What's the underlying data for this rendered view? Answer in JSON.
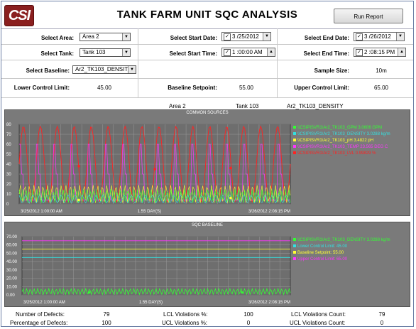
{
  "app": {
    "logo": "CSI",
    "title": "TANK FARM UNIT SQC ANALYSIS",
    "run_report_label": "Run Report"
  },
  "form": {
    "area_label": "Select Area:",
    "area_value": "Area 2",
    "start_date_label": "Select Start Date:",
    "start_date_value": "3 /25/2012",
    "end_date_label": "Select End Date:",
    "end_date_value": "3 /26/2012",
    "tank_label": "Select Tank:",
    "tank_value": "Tank 103",
    "start_time_label": "Select Start Time:",
    "start_time_value": "1 :00:00 AM",
    "end_time_label": "Select End Time:",
    "end_time_value": "2 :08:15 PM",
    "baseline_label": "Select Baseline:",
    "baseline_value": "Ar2_TK103_DENSIT",
    "sample_size_label": "Sample Size:",
    "sample_size_value": "10m",
    "lcl_label": "Lower Control Limit:",
    "lcl_value": "45.00",
    "setpoint_label": "Baseline Setpoint:",
    "setpoint_value": "55.00",
    "ucl_label": "Upper Control Limit:",
    "ucl_value": "65.00"
  },
  "selection_info": {
    "area": "Area 2",
    "tank": "Tank 103",
    "baseline": "Ar2_TK103_DENSITY"
  },
  "charts": {
    "common": {
      "title": "COMMON SOURCES",
      "y_ticks": [
        "80",
        "70",
        "60",
        "50",
        "40",
        "30",
        "20",
        "10",
        "0"
      ],
      "start_label": "3/25/2012 1:00:00 AM",
      "mid_label": "1.55 DAY(S)",
      "end_label": "3/26/2012 2:08:15 PM",
      "legend": [
        {
          "text": "\\\\CSIPISVR1\\Ar2_TK103_GPM 3.0606 GPM",
          "color": "#33ff33"
        },
        {
          "text": "\\\\CSIPISVR1\\Ar2_TK103_DENSITY 3.0288 kg/m",
          "color": "#33e0e0"
        },
        {
          "text": "\\\\CSIPISVR1\\Ar2_TK103_pH 3.4822 pH",
          "color": "#ffff33"
        },
        {
          "text": "\\\\CSIPISVR1\\Ar2_TK103_TEMP 23.565 DEG C",
          "color": "#ff33ff"
        },
        {
          "text": "\\\\CSIPISVR1\\Ar2_TK103_LVL 0.99829 %",
          "color": "#ff2222"
        }
      ]
    },
    "baseline": {
      "title": "SQC BASELINE",
      "y_ticks": [
        "70.00",
        "60.00",
        "50.00",
        "40.00",
        "30.00",
        "20.00",
        "10.00",
        "0.00"
      ],
      "start_label": "3/25/2012 1:00:00 AM",
      "mid_label": "1.55 DAY(S)",
      "end_label": "3/26/2012 2:08:15 PM",
      "legend": [
        {
          "text": "\\\\CSIPISVR1\\Ar2_TK103_DENSITY 3.0288 kg/m",
          "color": "#33ff33"
        },
        {
          "text": "Lower Control Limit: 45.00",
          "color": "#33e0e0"
        },
        {
          "text": "Baseline Setpoint: 55.00",
          "color": "#ffff33"
        },
        {
          "text": "Upper Control Limit: 65.00",
          "color": "#ff33ff"
        }
      ]
    }
  },
  "footer": {
    "defects_label": "Number of Defects:",
    "defects_value": "79",
    "pct_defects_label": "Percentage of Defects:",
    "pct_defects_value": "100",
    "lcl_pct_label": "LCL Violations %:",
    "lcl_pct_value": "100",
    "ucl_pct_label": "UCL Violations %:",
    "ucl_pct_value": "0",
    "lcl_count_label": "LCL Violations Count:",
    "lcl_count_value": "79",
    "ucl_count_label": "UCL Violations Count:",
    "ucl_count_value": "0"
  }
}
